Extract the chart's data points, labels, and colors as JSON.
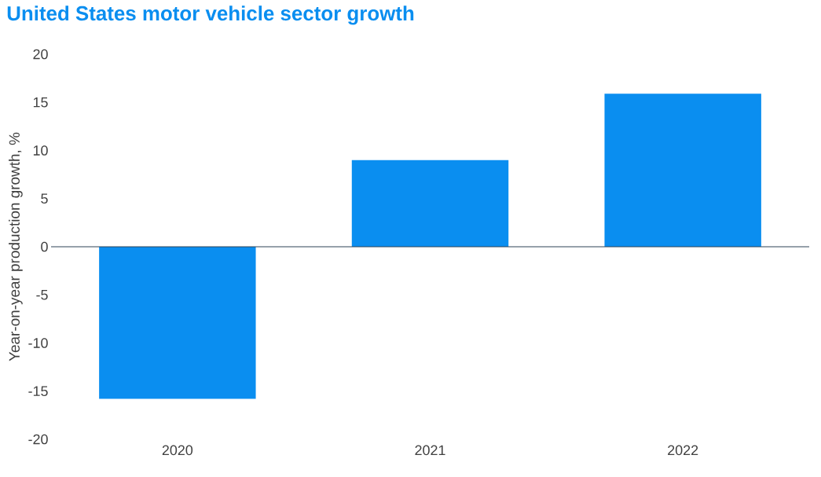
{
  "chart_data": {
    "type": "bar",
    "title": "United States motor vehicle sector growth",
    "ylabel": "Year-on-year production growth, %",
    "categories": [
      "2020",
      "2021",
      "2022"
    ],
    "values": [
      -15.8,
      9.0,
      15.9
    ],
    "color": "#0a8ef0",
    "ylim": [
      -20,
      20
    ],
    "yticks": [
      -20,
      -15,
      -10,
      -5,
      0,
      5,
      10,
      15,
      20
    ],
    "ref_lines": [
      {
        "axis": "y",
        "value": 0,
        "color": "#2e4458"
      }
    ]
  }
}
